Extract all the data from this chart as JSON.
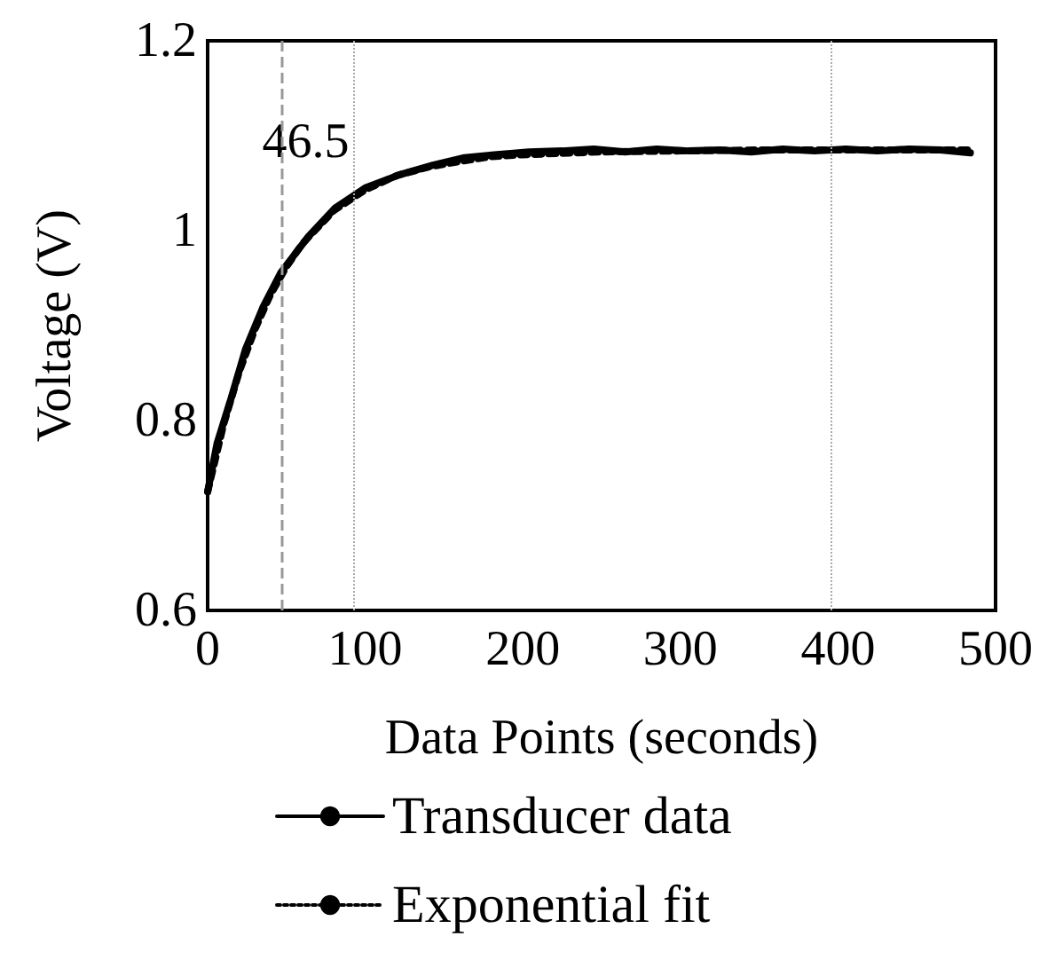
{
  "chart_data": {
    "type": "line",
    "xlabel": "Data Points (seconds)",
    "ylabel": "Voltage (V)",
    "xlim": [
      0,
      500
    ],
    "xticks": [
      0,
      100,
      200,
      300,
      400,
      500
    ],
    "ylim": [
      0.6,
      1.2
    ],
    "yticks": [
      0.6,
      0.8,
      1,
      1.2
    ],
    "legend": "bottom",
    "series": [
      {
        "name": "Transducer data",
        "color": "#000000",
        "line_style": "solid",
        "x": [
          0,
          6,
          15,
          24,
          35,
          46.5,
          64,
          81,
          100,
          122,
          143,
          163,
          182,
          204,
          225,
          245,
          265,
          285,
          305,
          325,
          345,
          365,
          385,
          405,
          425,
          445,
          465,
          484
        ],
        "values": [
          0.725,
          0.776,
          0.824,
          0.875,
          0.919,
          0.956,
          0.994,
          1.024,
          1.045,
          1.059,
          1.069,
          1.077,
          1.08,
          1.083,
          1.084,
          1.086,
          1.083,
          1.086,
          1.084,
          1.085,
          1.083,
          1.086,
          1.084,
          1.086,
          1.084,
          1.086,
          1.085,
          1.082
        ]
      },
      {
        "name": "Exponential fit",
        "color": "#000000",
        "line_style": "dotted",
        "x": [
          0,
          10,
          20,
          30,
          40,
          50,
          60,
          80,
          100,
          120,
          140,
          160,
          180,
          200,
          250,
          300,
          350,
          400,
          450,
          484
        ],
        "values": [
          0.725,
          0.795,
          0.851,
          0.896,
          0.933,
          0.962,
          0.986,
          1.021,
          1.043,
          1.058,
          1.067,
          1.073,
          1.078,
          1.08,
          1.083,
          1.084,
          1.085,
          1.085,
          1.085,
          1.085
        ]
      }
    ],
    "ref_lines": [
      {
        "axis": "x",
        "value": 46.5,
        "label": "46.5",
        "color": "#999999",
        "line_style": "dashed"
      },
      {
        "axis": "x",
        "value": 93,
        "color": "#aaaaaa",
        "line_style": "dotted"
      },
      {
        "axis": "x",
        "value": 396,
        "color": "#aaaaaa",
        "line_style": "dotted"
      }
    ]
  }
}
